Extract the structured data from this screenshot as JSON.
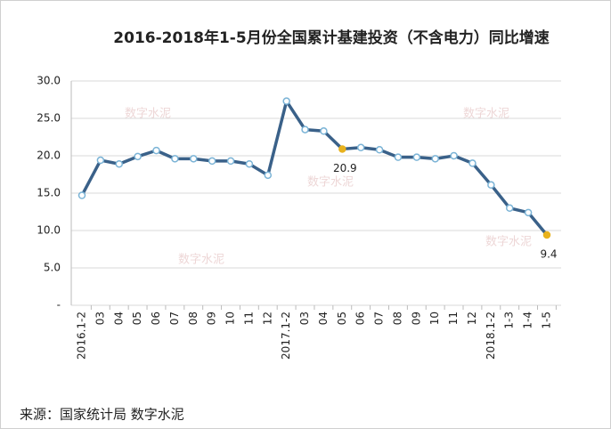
{
  "chart_data": {
    "type": "line",
    "title": "2016-2018年1-5月份全国累计基建投资（不含电力）同比增速",
    "categories": [
      "2016.1-2",
      "03",
      "04",
      "05",
      "06",
      "07",
      "08",
      "09",
      "10",
      "11",
      "12",
      "2017.1-2",
      "03",
      "04",
      "05",
      "06",
      "07",
      "08",
      "09",
      "10",
      "11",
      "12",
      "2018.1-2",
      "1-3",
      "1-4",
      "1-5"
    ],
    "series": [
      {
        "color": "#3a6189",
        "values": [
          14.7,
          19.4,
          18.9,
          19.9,
          20.7,
          19.6,
          19.6,
          19.3,
          19.3,
          18.9,
          17.4,
          27.3,
          23.5,
          23.3,
          20.9,
          21.1,
          20.8,
          19.8,
          19.8,
          19.6,
          20.0,
          19.0,
          16.1,
          13.0,
          12.4,
          9.4
        ]
      }
    ],
    "ylim": [
      0,
      30
    ],
    "yticks": [
      {
        "value": 0,
        "label": "-"
      },
      {
        "value": 5,
        "label": "5.0"
      },
      {
        "value": 10,
        "label": "10.0"
      },
      {
        "value": 15,
        "label": "15.0"
      },
      {
        "value": 20,
        "label": "20.0"
      },
      {
        "value": 25,
        "label": "25.0"
      },
      {
        "value": 30,
        "label": "30.0"
      }
    ],
    "grid": true,
    "highlight": [
      14,
      25
    ],
    "highlight_color": "#e8b21e",
    "source": "来源：国家统计局   数字水泥",
    "watermark": "数字水泥"
  }
}
